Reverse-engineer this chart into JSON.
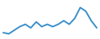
{
  "x": [
    0,
    1,
    2,
    3,
    4,
    5,
    6,
    7,
    8,
    9,
    10,
    11,
    12,
    13,
    14,
    15,
    16,
    17
  ],
  "y": [
    3.0,
    2.5,
    4.0,
    5.5,
    6.5,
    5.0,
    7.5,
    5.5,
    6.5,
    5.5,
    6.5,
    8.0,
    6.5,
    9.0,
    13.5,
    12.0,
    8.0,
    5.0
  ],
  "line_color": "#3a8fc9",
  "linewidth": 1.4,
  "background_color": "#ffffff",
  "xlim": [
    -0.3,
    17.3
  ],
  "ylim": [
    1.0,
    16.0
  ]
}
